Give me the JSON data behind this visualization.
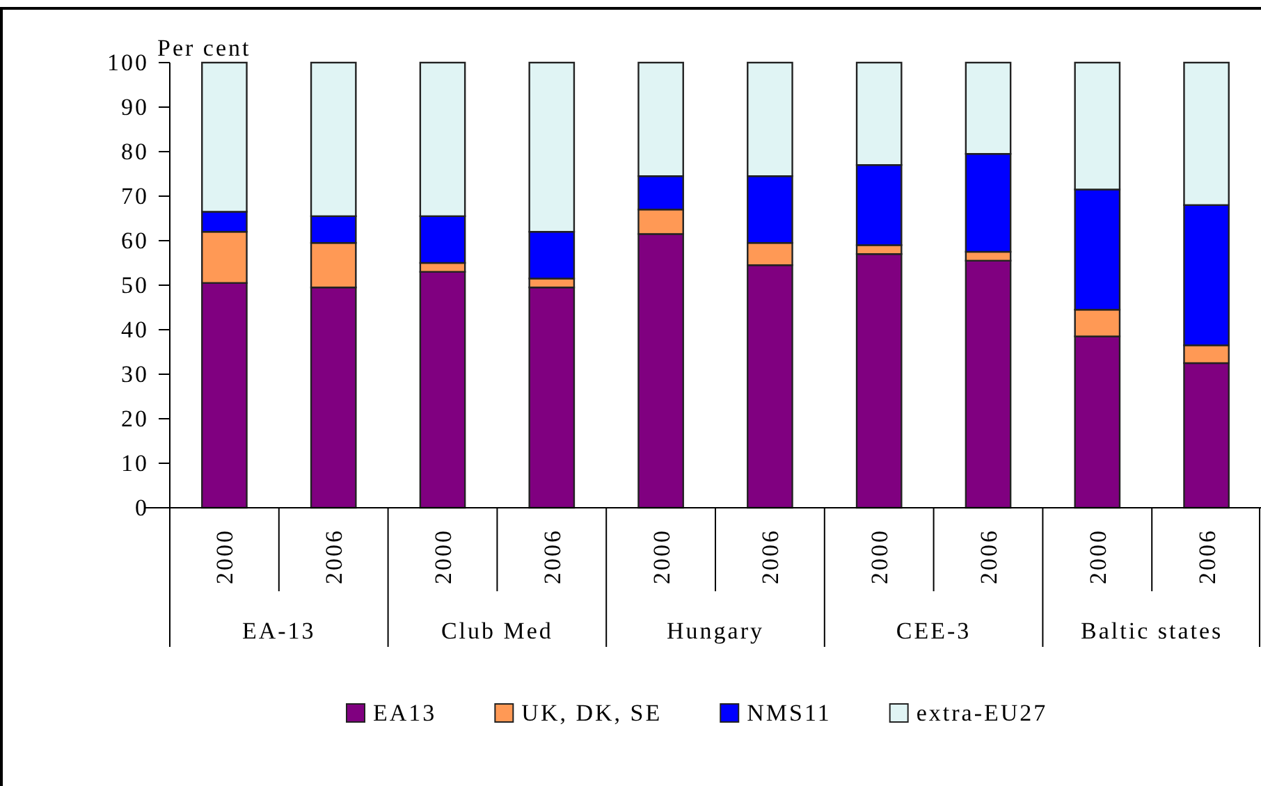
{
  "chart_data": {
    "type": "bar",
    "stacked": true,
    "ylabel": "Per cent",
    "categories": [
      "2000",
      "2006",
      "2000",
      "2006",
      "2000",
      "2006",
      "2000",
      "2006",
      "2000",
      "2006"
    ],
    "annotations": [
      "EA-13",
      "Club Med",
      "Hungary",
      "CEE-3",
      "Baltic states"
    ],
    "series": [
      {
        "name": "EA13",
        "color": "#800080",
        "values": [
          50.5,
          49.5,
          53,
          49.5,
          61.5,
          54.5,
          57,
          55.5,
          38.5,
          32.5
        ]
      },
      {
        "name": "UK, DK, SE",
        "color": "#ff9955",
        "values": [
          11.5,
          10,
          2,
          2,
          5.5,
          5,
          2,
          2,
          6,
          4
        ]
      },
      {
        "name": "NMS11",
        "color": "#0000ff",
        "values": [
          4.5,
          6,
          10.5,
          10.5,
          7.5,
          15,
          18,
          22,
          27,
          31.5
        ]
      },
      {
        "name": "extra-EU27",
        "color": "#e0f4f4",
        "values": [
          33.5,
          34.5,
          34.5,
          38,
          25.5,
          25.5,
          23,
          20.5,
          28.5,
          32
        ]
      }
    ],
    "ylim": [
      0,
      100
    ],
    "yticks": [
      0,
      10,
      20,
      30,
      40,
      50,
      60,
      70,
      80,
      90,
      100
    ],
    "legend": "bottom",
    "grid": false
  }
}
